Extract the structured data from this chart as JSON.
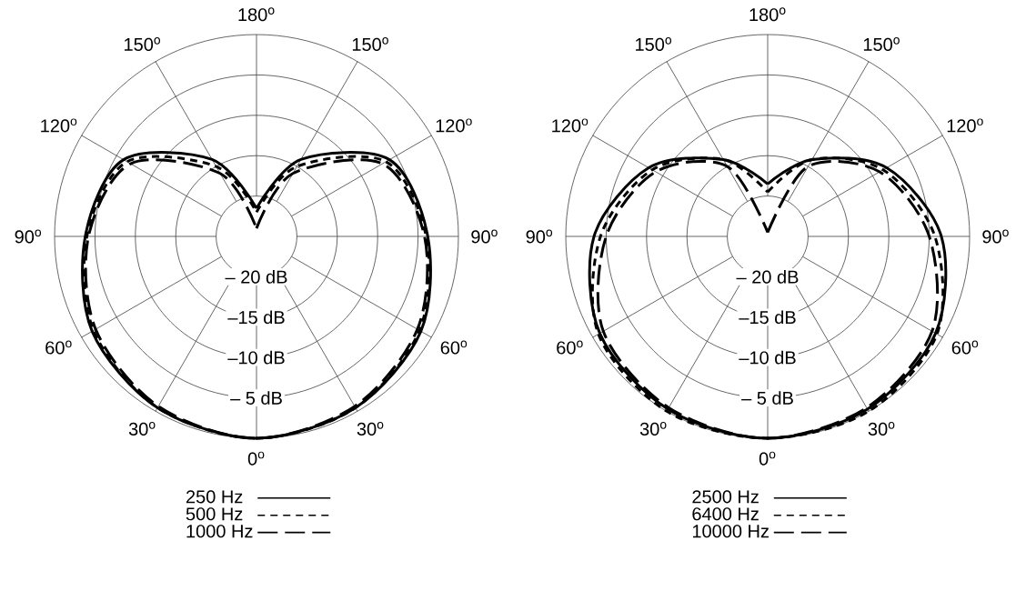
{
  "chart_data": [
    {
      "type": "radar",
      "categories": [
        "180$^{o}$",
        "150$^{o}$",
        "120$^{o}$",
        "90$^{o}$",
        "60$^{o}$",
        "30$^{o}$",
        "0$^{o}$",
        "30$^{o}$",
        "60$^{o}$",
        "90$^{o}$",
        "120$^{o}$",
        "150$^{o}$"
      ],
      "ylim": [
        -25,
        0
      ],
      "yticks": [
        {
          "value": -20,
          "label": "– 20 dB"
        },
        {
          "value": -15,
          "label": "–15 dB"
        },
        {
          "value": -10,
          "label": "–10 dB"
        },
        {
          "value": -5,
          "label": "– 5 dB"
        }
      ],
      "grid": true,
      "legend": "bottom",
      "series": [
        {
          "name": "250 Hz",
          "color": "#000000",
          "line_style": "solid",
          "values": [
            -21.5,
            -14,
            -6,
            -3.8,
            -1.5,
            -0.5,
            0,
            -0.5,
            -1.5,
            -3.8,
            -6,
            -14
          ]
        },
        {
          "name": "500 Hz",
          "color": "#000000",
          "line_style": "dashed",
          "values": [
            -22,
            -15,
            -6.5,
            -4,
            -1.7,
            -0.5,
            0,
            -0.5,
            -1.7,
            -4,
            -6.5,
            -15
          ]
        },
        {
          "name": "1000 Hz",
          "color": "#000000",
          "line_style": "long dashed",
          "values": [
            -24,
            -16,
            -7,
            -4.2,
            -2,
            -0.7,
            0,
            -0.7,
            -2,
            -4.2,
            -7,
            -16
          ]
        }
      ]
    },
    {
      "type": "radar",
      "categories": [
        "180$^{o}$",
        "150$^{o}$",
        "120$^{o}$",
        "90$^{o}$",
        "60$^{o}$",
        "30$^{o}$",
        "0$^{o}$",
        "30$^{o}$",
        "60$^{o}$",
        "90$^{o}$",
        "120$^{o}$",
        "150$^{o}$"
      ],
      "ylim": [
        -25,
        0
      ],
      "yticks": [
        {
          "value": -20,
          "label": "– 20 dB"
        },
        {
          "value": -15,
          "label": "–15 dB"
        },
        {
          "value": -10,
          "label": "–10 dB"
        },
        {
          "value": -5,
          "label": "– 5 dB"
        }
      ],
      "grid": true,
      "legend": "bottom",
      "series": [
        {
          "name": "2500 Hz",
          "color": "#000000",
          "line_style": "solid",
          "values": [
            -18.5,
            -14,
            -8,
            -3.5,
            -1,
            -0.3,
            0,
            -0.3,
            -1,
            -3.5,
            -8,
            -14
          ]
        },
        {
          "name": "6400 Hz",
          "color": "#000000",
          "line_style": "dashed",
          "values": [
            -19.5,
            -14,
            -8.5,
            -4.3,
            -0.8,
            0,
            0,
            0,
            -0.8,
            -4.3,
            -8.5,
            -14
          ]
        },
        {
          "name": "10000 Hz",
          "color": "#000000",
          "line_style": "long dashed",
          "values": [
            -24.5,
            -15,
            -9,
            -5,
            -1.5,
            -0.5,
            0,
            -0.5,
            -1.5,
            -5,
            -9,
            -15
          ]
        }
      ]
    }
  ]
}
